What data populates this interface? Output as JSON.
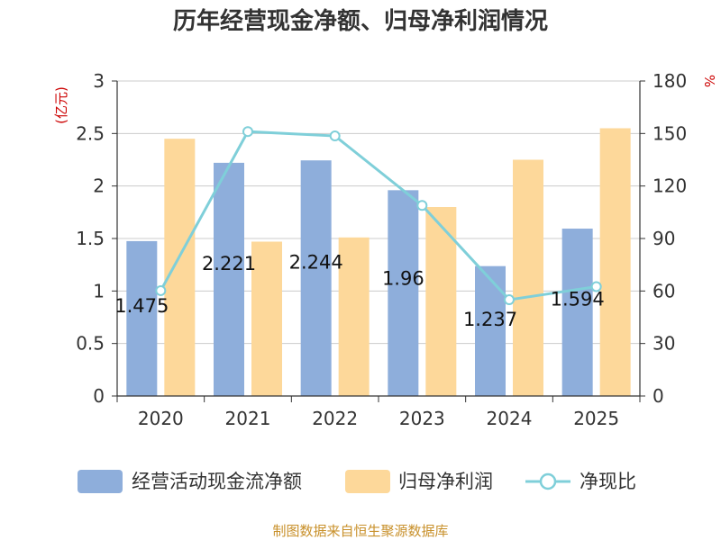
{
  "chart_data": {
    "type": "bar",
    "title": "历年经营现金净额、归母净利润情况",
    "categories": [
      "2020",
      "2021",
      "2022",
      "2023",
      "2024",
      "2025"
    ],
    "y_left": {
      "unit": "(亿元)",
      "ylim": [
        0,
        3
      ],
      "ticks": [
        "0",
        "0.5",
        "1",
        "1.5",
        "2",
        "2.5",
        "3"
      ]
    },
    "y_right": {
      "unit": "%",
      "ylim": [
        0,
        180
      ],
      "ticks": [
        "0",
        "30",
        "60",
        "90",
        "120",
        "150",
        "180"
      ]
    },
    "series": [
      {
        "name": "经营活动现金流净额",
        "kind": "bar",
        "axis": "left",
        "color": "#8eaedb",
        "values": [
          1.475,
          2.221,
          2.244,
          1.96,
          1.237,
          1.594
        ],
        "labels": [
          "1.475",
          "2.221",
          "2.244",
          "1.96",
          "1.237",
          "1.594"
        ]
      },
      {
        "name": "归母净利润",
        "kind": "bar",
        "axis": "left",
        "color": "#fdd89a",
        "values": [
          2.45,
          1.47,
          1.51,
          1.8,
          2.25,
          2.55
        ]
      },
      {
        "name": "净现比",
        "kind": "line",
        "axis": "right",
        "color": "#7fcfd9",
        "values": [
          60.2,
          151.1,
          148.6,
          108.9,
          55.0,
          62.5
        ]
      }
    ],
    "legend_position": "bottom",
    "grid": true
  },
  "source_text": "制图数据来自恒生聚源数据库"
}
